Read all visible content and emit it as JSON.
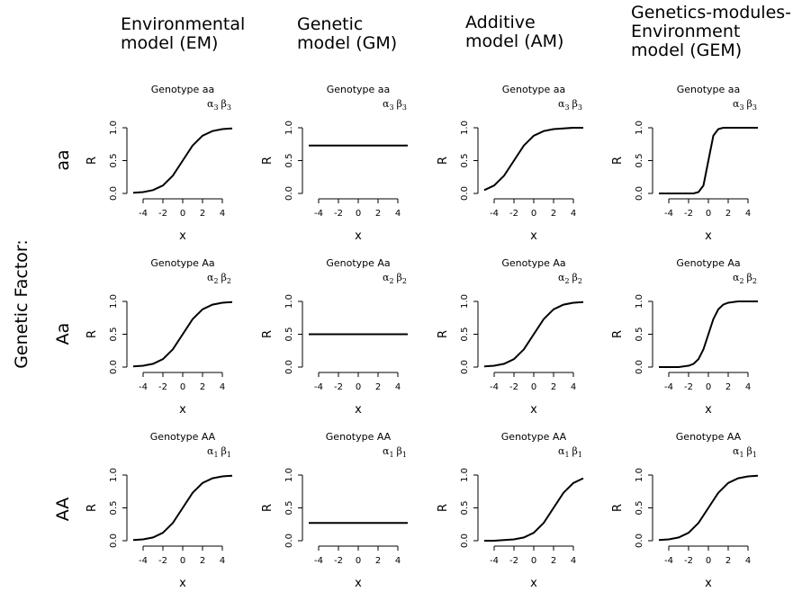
{
  "row_group_label": "Genetic Factor:",
  "columns": [
    {
      "lines": [
        "Environmental",
        "model (EM)"
      ]
    },
    {
      "lines": [
        "Genetic",
        "model (GM)"
      ]
    },
    {
      "lines": [
        "Additive",
        "model (AM)"
      ]
    },
    {
      "lines": [
        "Genetics-modules-",
        "Environment",
        "model (GEM)"
      ]
    }
  ],
  "rows": [
    {
      "label": "aa",
      "title": "Genotype aa",
      "param": {
        "a": "α",
        "b": "β",
        "sub": "3"
      }
    },
    {
      "label": "Aa",
      "title": "Genotype Aa",
      "param": {
        "a": "α",
        "b": "β",
        "sub": "2"
      }
    },
    {
      "label": "AA",
      "title": "Genotype AA",
      "param": {
        "a": "α",
        "b": "β",
        "sub": "1"
      }
    }
  ],
  "chart_data": [
    {
      "type": "line",
      "model": "EM",
      "genotype": "aa",
      "title": "Genotype aa",
      "xlabel": "x",
      "ylabel": "R",
      "xlim": [
        -5,
        5
      ],
      "ylim": [
        0,
        1
      ],
      "xticks": [
        -4,
        -2,
        0,
        2,
        4
      ],
      "yticks": [
        0.0,
        0.5,
        1.0
      ],
      "x": [
        -5,
        -4,
        -3,
        -2,
        -1,
        0,
        1,
        2,
        3,
        4,
        5
      ],
      "series": [
        {
          "values": [
            0.01,
            0.02,
            0.05,
            0.12,
            0.27,
            0.5,
            0.73,
            0.88,
            0.95,
            0.98,
            0.99
          ]
        }
      ]
    },
    {
      "type": "line",
      "model": "GM",
      "genotype": "aa",
      "title": "Genotype aa",
      "xlabel": "x",
      "ylabel": "R",
      "xlim": [
        -5,
        5
      ],
      "ylim": [
        0,
        1
      ],
      "xticks": [
        -4,
        -2,
        0,
        2,
        4
      ],
      "yticks": [
        0.0,
        0.5,
        1.0
      ],
      "x": [
        -5,
        -4,
        -3,
        -2,
        -1,
        0,
        1,
        2,
        3,
        4,
        5
      ],
      "series": [
        {
          "values": [
            0.73,
            0.73,
            0.73,
            0.73,
            0.73,
            0.73,
            0.73,
            0.73,
            0.73,
            0.73,
            0.73
          ]
        }
      ]
    },
    {
      "type": "line",
      "model": "AM",
      "genotype": "aa",
      "title": "Genotype aa",
      "xlabel": "x",
      "ylabel": "R",
      "xlim": [
        -5,
        5
      ],
      "ylim": [
        0,
        1
      ],
      "xticks": [
        -4,
        -2,
        0,
        2,
        4
      ],
      "yticks": [
        0.0,
        0.5,
        1.0
      ],
      "x": [
        -5,
        -4,
        -3,
        -2,
        -1,
        0,
        1,
        2,
        3,
        4,
        5
      ],
      "series": [
        {
          "values": [
            0.05,
            0.12,
            0.27,
            0.5,
            0.73,
            0.88,
            0.95,
            0.98,
            0.99,
            1.0,
            1.0
          ]
        }
      ]
    },
    {
      "type": "line",
      "model": "GEM",
      "genotype": "aa",
      "title": "Genotype aa",
      "xlabel": "x",
      "ylabel": "R",
      "xlim": [
        -5,
        5
      ],
      "ylim": [
        0,
        1
      ],
      "xticks": [
        -4,
        -2,
        0,
        2,
        4
      ],
      "yticks": [
        0.0,
        0.5,
        1.0
      ],
      "x": [
        -5,
        -4,
        -3,
        -2,
        -1.5,
        -1,
        -0.5,
        0,
        0.5,
        1,
        1.5,
        2,
        3,
        4,
        5
      ],
      "series": [
        {
          "values": [
            0.0,
            0.0,
            0.0,
            0.0,
            0.0,
            0.02,
            0.12,
            0.5,
            0.88,
            0.98,
            1.0,
            1.0,
            1.0,
            1.0,
            1.0
          ]
        }
      ]
    },
    {
      "type": "line",
      "model": "EM",
      "genotype": "Aa",
      "title": "Genotype Aa",
      "xlabel": "x",
      "ylabel": "R",
      "xlim": [
        -5,
        5
      ],
      "ylim": [
        0,
        1
      ],
      "xticks": [
        -4,
        -2,
        0,
        2,
        4
      ],
      "yticks": [
        0.0,
        0.5,
        1.0
      ],
      "x": [
        -5,
        -4,
        -3,
        -2,
        -1,
        0,
        1,
        2,
        3,
        4,
        5
      ],
      "series": [
        {
          "values": [
            0.01,
            0.02,
            0.05,
            0.12,
            0.27,
            0.5,
            0.73,
            0.88,
            0.95,
            0.98,
            0.99
          ]
        }
      ]
    },
    {
      "type": "line",
      "model": "GM",
      "genotype": "Aa",
      "title": "Genotype Aa",
      "xlabel": "x",
      "ylabel": "R",
      "xlim": [
        -5,
        5
      ],
      "ylim": [
        0,
        1
      ],
      "xticks": [
        -4,
        -2,
        0,
        2,
        4
      ],
      "yticks": [
        0.0,
        0.5,
        1.0
      ],
      "x": [
        -5,
        -4,
        -3,
        -2,
        -1,
        0,
        1,
        2,
        3,
        4,
        5
      ],
      "series": [
        {
          "values": [
            0.5,
            0.5,
            0.5,
            0.5,
            0.5,
            0.5,
            0.5,
            0.5,
            0.5,
            0.5,
            0.5
          ]
        }
      ]
    },
    {
      "type": "line",
      "model": "AM",
      "genotype": "Aa",
      "title": "Genotype Aa",
      "xlabel": "x",
      "ylabel": "R",
      "xlim": [
        -5,
        5
      ],
      "ylim": [
        0,
        1
      ],
      "xticks": [
        -4,
        -2,
        0,
        2,
        4
      ],
      "yticks": [
        0.0,
        0.5,
        1.0
      ],
      "x": [
        -5,
        -4,
        -3,
        -2,
        -1,
        0,
        1,
        2,
        3,
        4,
        5
      ],
      "series": [
        {
          "values": [
            0.01,
            0.02,
            0.05,
            0.12,
            0.27,
            0.5,
            0.73,
            0.88,
            0.95,
            0.98,
            0.99
          ]
        }
      ]
    },
    {
      "type": "line",
      "model": "GEM",
      "genotype": "Aa",
      "title": "Genotype Aa",
      "xlabel": "x",
      "ylabel": "R",
      "xlim": [
        -5,
        5
      ],
      "ylim": [
        0,
        1
      ],
      "xticks": [
        -4,
        -2,
        0,
        2,
        4
      ],
      "yticks": [
        0.0,
        0.5,
        1.0
      ],
      "x": [
        -5,
        -4,
        -3,
        -2,
        -1.5,
        -1,
        -0.5,
        0,
        0.5,
        1,
        1.5,
        2,
        3,
        4,
        5
      ],
      "series": [
        {
          "values": [
            0.0,
            0.0,
            0.0,
            0.02,
            0.05,
            0.12,
            0.27,
            0.5,
            0.73,
            0.88,
            0.95,
            0.98,
            1.0,
            1.0,
            1.0
          ]
        }
      ]
    },
    {
      "type": "line",
      "model": "EM",
      "genotype": "AA",
      "title": "Genotype AA",
      "xlabel": "x",
      "ylabel": "R",
      "xlim": [
        -5,
        5
      ],
      "ylim": [
        0,
        1
      ],
      "xticks": [
        -4,
        -2,
        0,
        2,
        4
      ],
      "yticks": [
        0.0,
        0.5,
        1.0
      ],
      "x": [
        -5,
        -4,
        -3,
        -2,
        -1,
        0,
        1,
        2,
        3,
        4,
        5
      ],
      "series": [
        {
          "values": [
            0.01,
            0.02,
            0.05,
            0.12,
            0.27,
            0.5,
            0.73,
            0.88,
            0.95,
            0.98,
            0.99
          ]
        }
      ]
    },
    {
      "type": "line",
      "model": "GM",
      "genotype": "AA",
      "title": "Genotype AA",
      "xlabel": "x",
      "ylabel": "R",
      "xlim": [
        -5,
        5
      ],
      "ylim": [
        0,
        1
      ],
      "xticks": [
        -4,
        -2,
        0,
        2,
        4
      ],
      "yticks": [
        0.0,
        0.5,
        1.0
      ],
      "x": [
        -5,
        -4,
        -3,
        -2,
        -1,
        0,
        1,
        2,
        3,
        4,
        5
      ],
      "series": [
        {
          "values": [
            0.27,
            0.27,
            0.27,
            0.27,
            0.27,
            0.27,
            0.27,
            0.27,
            0.27,
            0.27,
            0.27
          ]
        }
      ]
    },
    {
      "type": "line",
      "model": "AM",
      "genotype": "AA",
      "title": "Genotype AA",
      "xlabel": "x",
      "ylabel": "R",
      "xlim": [
        -5,
        5
      ],
      "ylim": [
        0,
        1
      ],
      "xticks": [
        -4,
        -2,
        0,
        2,
        4
      ],
      "yticks": [
        0.0,
        0.5,
        1.0
      ],
      "x": [
        -5,
        -4,
        -3,
        -2,
        -1,
        0,
        1,
        2,
        3,
        4,
        5
      ],
      "series": [
        {
          "values": [
            0.0,
            0.0,
            0.01,
            0.02,
            0.05,
            0.12,
            0.27,
            0.5,
            0.73,
            0.88,
            0.95
          ]
        }
      ]
    },
    {
      "type": "line",
      "model": "GEM",
      "genotype": "AA",
      "title": "Genotype AA",
      "xlabel": "x",
      "ylabel": "R",
      "xlim": [
        -5,
        5
      ],
      "ylim": [
        0,
        1
      ],
      "xticks": [
        -4,
        -2,
        0,
        2,
        4
      ],
      "yticks": [
        0.0,
        0.5,
        1.0
      ],
      "x": [
        -5,
        -4,
        -3,
        -2,
        -1,
        0,
        1,
        2,
        3,
        4,
        5
      ],
      "series": [
        {
          "values": [
            0.01,
            0.02,
            0.05,
            0.12,
            0.27,
            0.5,
            0.73,
            0.88,
            0.95,
            0.98,
            0.99
          ]
        }
      ]
    }
  ]
}
